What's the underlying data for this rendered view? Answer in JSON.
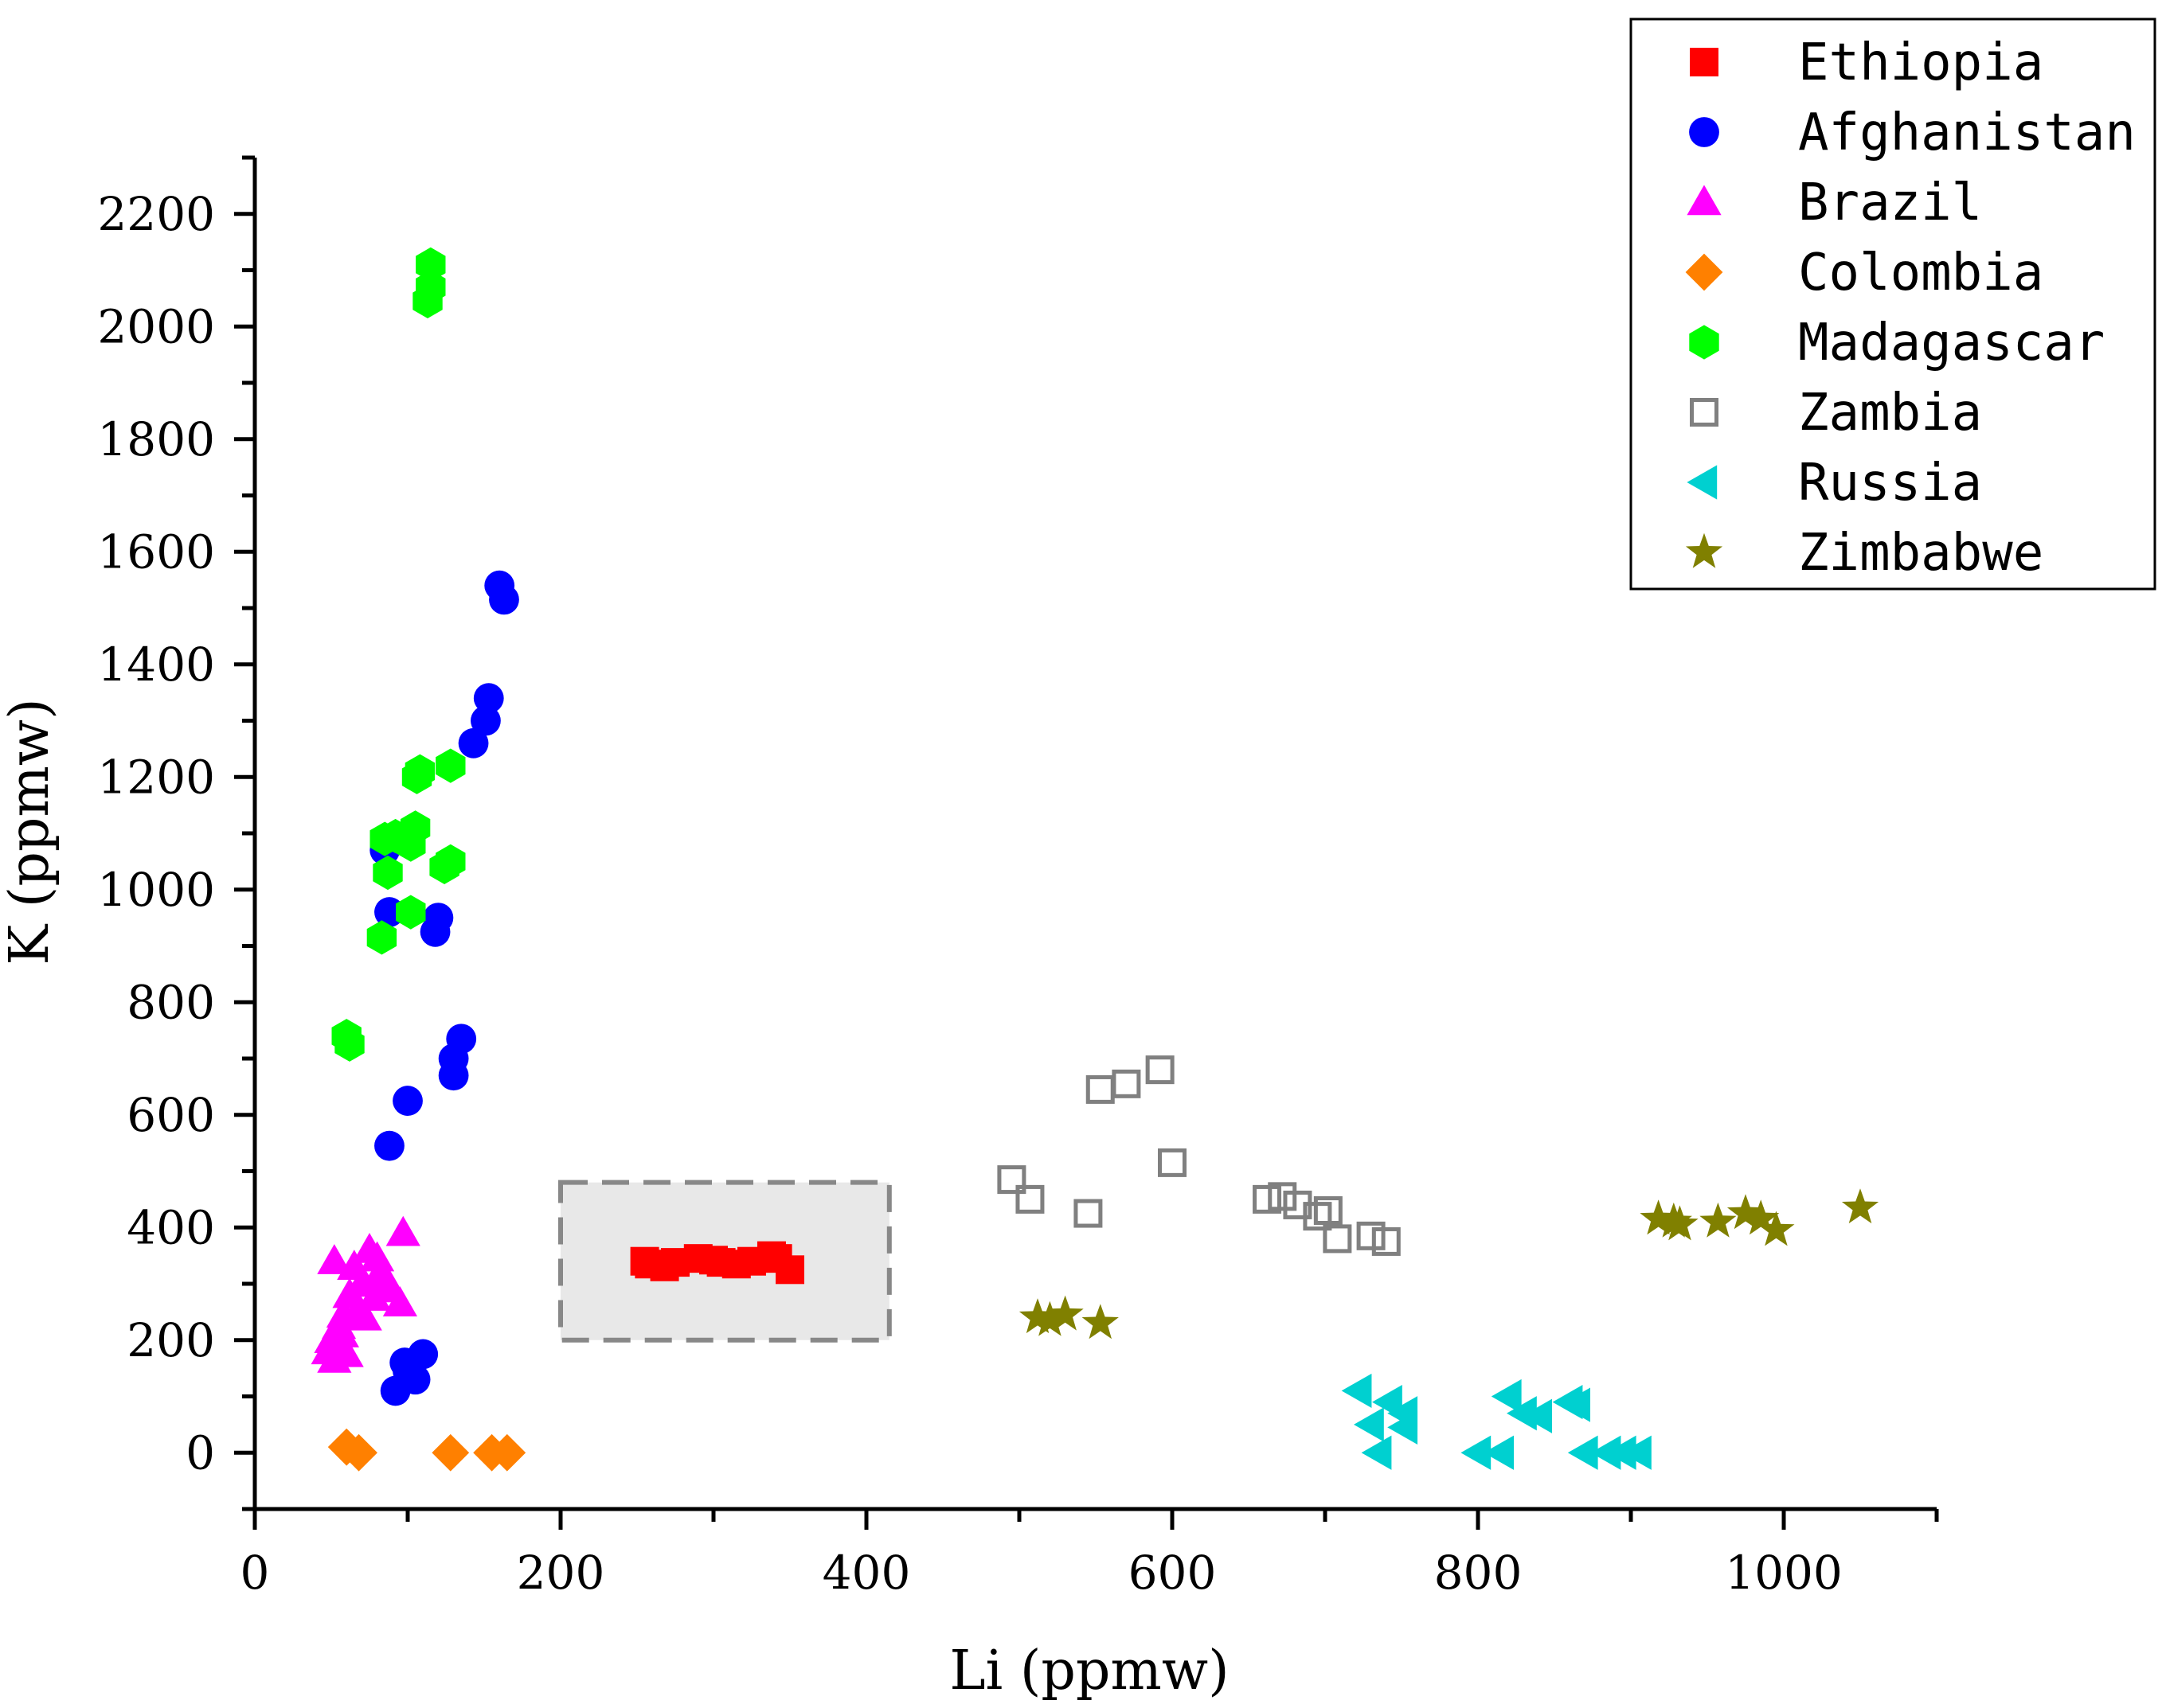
{
  "chart_data": {
    "type": "scatter",
    "title": "",
    "xlabel": "Li (ppmw)",
    "ylabel": "K (ppmw)",
    "xlim": [
      0,
      1100
    ],
    "ylim": [
      -100,
      2300
    ],
    "x_ticks": [
      0,
      200,
      400,
      600,
      800,
      1000
    ],
    "x_tick_labels": [
      "0",
      "200",
      "400",
      "600",
      "800",
      "1000"
    ],
    "y_ticks": [
      0,
      200,
      400,
      600,
      800,
      1000,
      1200,
      1400,
      1600,
      1800,
      2000,
      2200
    ],
    "y_tick_labels": [
      "0",
      "200",
      "400",
      "600",
      "800",
      "1000",
      "1200",
      "1400",
      "1600",
      "1800",
      "2000",
      "2200"
    ],
    "grid": false,
    "legend_position": "top-right",
    "highlight_box": {
      "x_range": [
        200,
        415
      ],
      "y_range": [
        200,
        480
      ],
      "fill": "#e8e8e8",
      "stroke": "#888888"
    },
    "series": [
      {
        "name": "Ethiopia",
        "marker": "square",
        "color": "#ff0000",
        "filled": true,
        "points": [
          [
            255,
            340
          ],
          [
            268,
            330
          ],
          [
            275,
            338
          ],
          [
            290,
            345
          ],
          [
            300,
            342
          ],
          [
            315,
            335
          ],
          [
            325,
            340
          ],
          [
            338,
            350
          ],
          [
            342,
            345
          ],
          [
            350,
            325
          ],
          [
            258,
            335
          ],
          [
            305,
            338
          ]
        ]
      },
      {
        "name": "Afghanistan",
        "marker": "circle",
        "color": "#0000ff",
        "filled": true,
        "points": [
          [
            160,
            1540
          ],
          [
            163,
            1515
          ],
          [
            153,
            1340
          ],
          [
            151,
            1300
          ],
          [
            143,
            1260
          ],
          [
            85,
            1070
          ],
          [
            88,
            960
          ],
          [
            120,
            950
          ],
          [
            118,
            925
          ],
          [
            135,
            735
          ],
          [
            130,
            700
          ],
          [
            130,
            670
          ],
          [
            100,
            625
          ],
          [
            88,
            545
          ],
          [
            100,
            145
          ],
          [
            110,
            175
          ],
          [
            105,
            130
          ],
          [
            92,
            110
          ],
          [
            98,
            160
          ]
        ]
      },
      {
        "name": "Brazil",
        "marker": "triangle-up",
        "color": "#ff00ff",
        "filled": true,
        "points": [
          [
            97,
            390
          ],
          [
            52,
            340
          ],
          [
            75,
            360
          ],
          [
            80,
            345
          ],
          [
            65,
            330
          ],
          [
            82,
            320
          ],
          [
            70,
            300
          ],
          [
            85,
            310
          ],
          [
            62,
            280
          ],
          [
            95,
            265
          ],
          [
            78,
            275
          ],
          [
            58,
            245
          ],
          [
            72,
            240
          ],
          [
            55,
            225
          ],
          [
            50,
            200
          ],
          [
            48,
            180
          ],
          [
            52,
            165
          ],
          [
            60,
            175
          ],
          [
            68,
            255
          ],
          [
            88,
            290
          ],
          [
            57,
            210
          ]
        ]
      },
      {
        "name": "Colombia",
        "marker": "diamond",
        "color": "#ff8000",
        "filled": true,
        "points": [
          [
            60,
            10
          ],
          [
            68,
            0
          ],
          [
            128,
            0
          ],
          [
            155,
            0
          ],
          [
            165,
            0
          ]
        ]
      },
      {
        "name": "Madagascar",
        "marker": "hexagon",
        "color": "#00ff00",
        "filled": true,
        "points": [
          [
            115,
            2110
          ],
          [
            115,
            2070
          ],
          [
            113,
            2045
          ],
          [
            108,
            1210
          ],
          [
            128,
            1220
          ],
          [
            106,
            1200
          ],
          [
            105,
            1110
          ],
          [
            102,
            1080
          ],
          [
            85,
            1090
          ],
          [
            92,
            1095
          ],
          [
            128,
            1050
          ],
          [
            124,
            1040
          ],
          [
            87,
            1030
          ],
          [
            102,
            960
          ],
          [
            83,
            915
          ],
          [
            60,
            740
          ],
          [
            62,
            725
          ]
        ]
      },
      {
        "name": "Zambia",
        "marker": "square-open",
        "color": "#808080",
        "filled": false,
        "points": [
          [
            495,
            485
          ],
          [
            507,
            450
          ],
          [
            545,
            425
          ],
          [
            553,
            645
          ],
          [
            570,
            655
          ],
          [
            592,
            680
          ],
          [
            600,
            515
          ],
          [
            662,
            450
          ],
          [
            672,
            455
          ],
          [
            682,
            440
          ],
          [
            695,
            420
          ],
          [
            702,
            430
          ],
          [
            708,
            380
          ],
          [
            730,
            385
          ],
          [
            740,
            375
          ]
        ]
      },
      {
        "name": "Russia",
        "marker": "triangle-left",
        "color": "#00d0d0",
        "filled": true,
        "points": [
          [
            722,
            110
          ],
          [
            742,
            90
          ],
          [
            752,
            70
          ],
          [
            730,
            50
          ],
          [
            752,
            45
          ],
          [
            735,
            0
          ],
          [
            820,
            100
          ],
          [
            830,
            70
          ],
          [
            840,
            65
          ],
          [
            860,
            90
          ],
          [
            865,
            85
          ],
          [
            800,
            0
          ],
          [
            815,
            0
          ],
          [
            870,
            0
          ],
          [
            885,
            0
          ],
          [
            895,
            0
          ],
          [
            905,
            0
          ]
        ]
      },
      {
        "name": "Zimbabwe",
        "marker": "star",
        "color": "#808000",
        "filled": true,
        "points": [
          [
            512,
            240
          ],
          [
            520,
            235
          ],
          [
            530,
            245
          ],
          [
            553,
            230
          ],
          [
            918,
            415
          ],
          [
            928,
            410
          ],
          [
            932,
            405
          ],
          [
            957,
            410
          ],
          [
            975,
            425
          ],
          [
            985,
            415
          ],
          [
            995,
            395
          ],
          [
            1050,
            435
          ]
        ]
      }
    ]
  }
}
